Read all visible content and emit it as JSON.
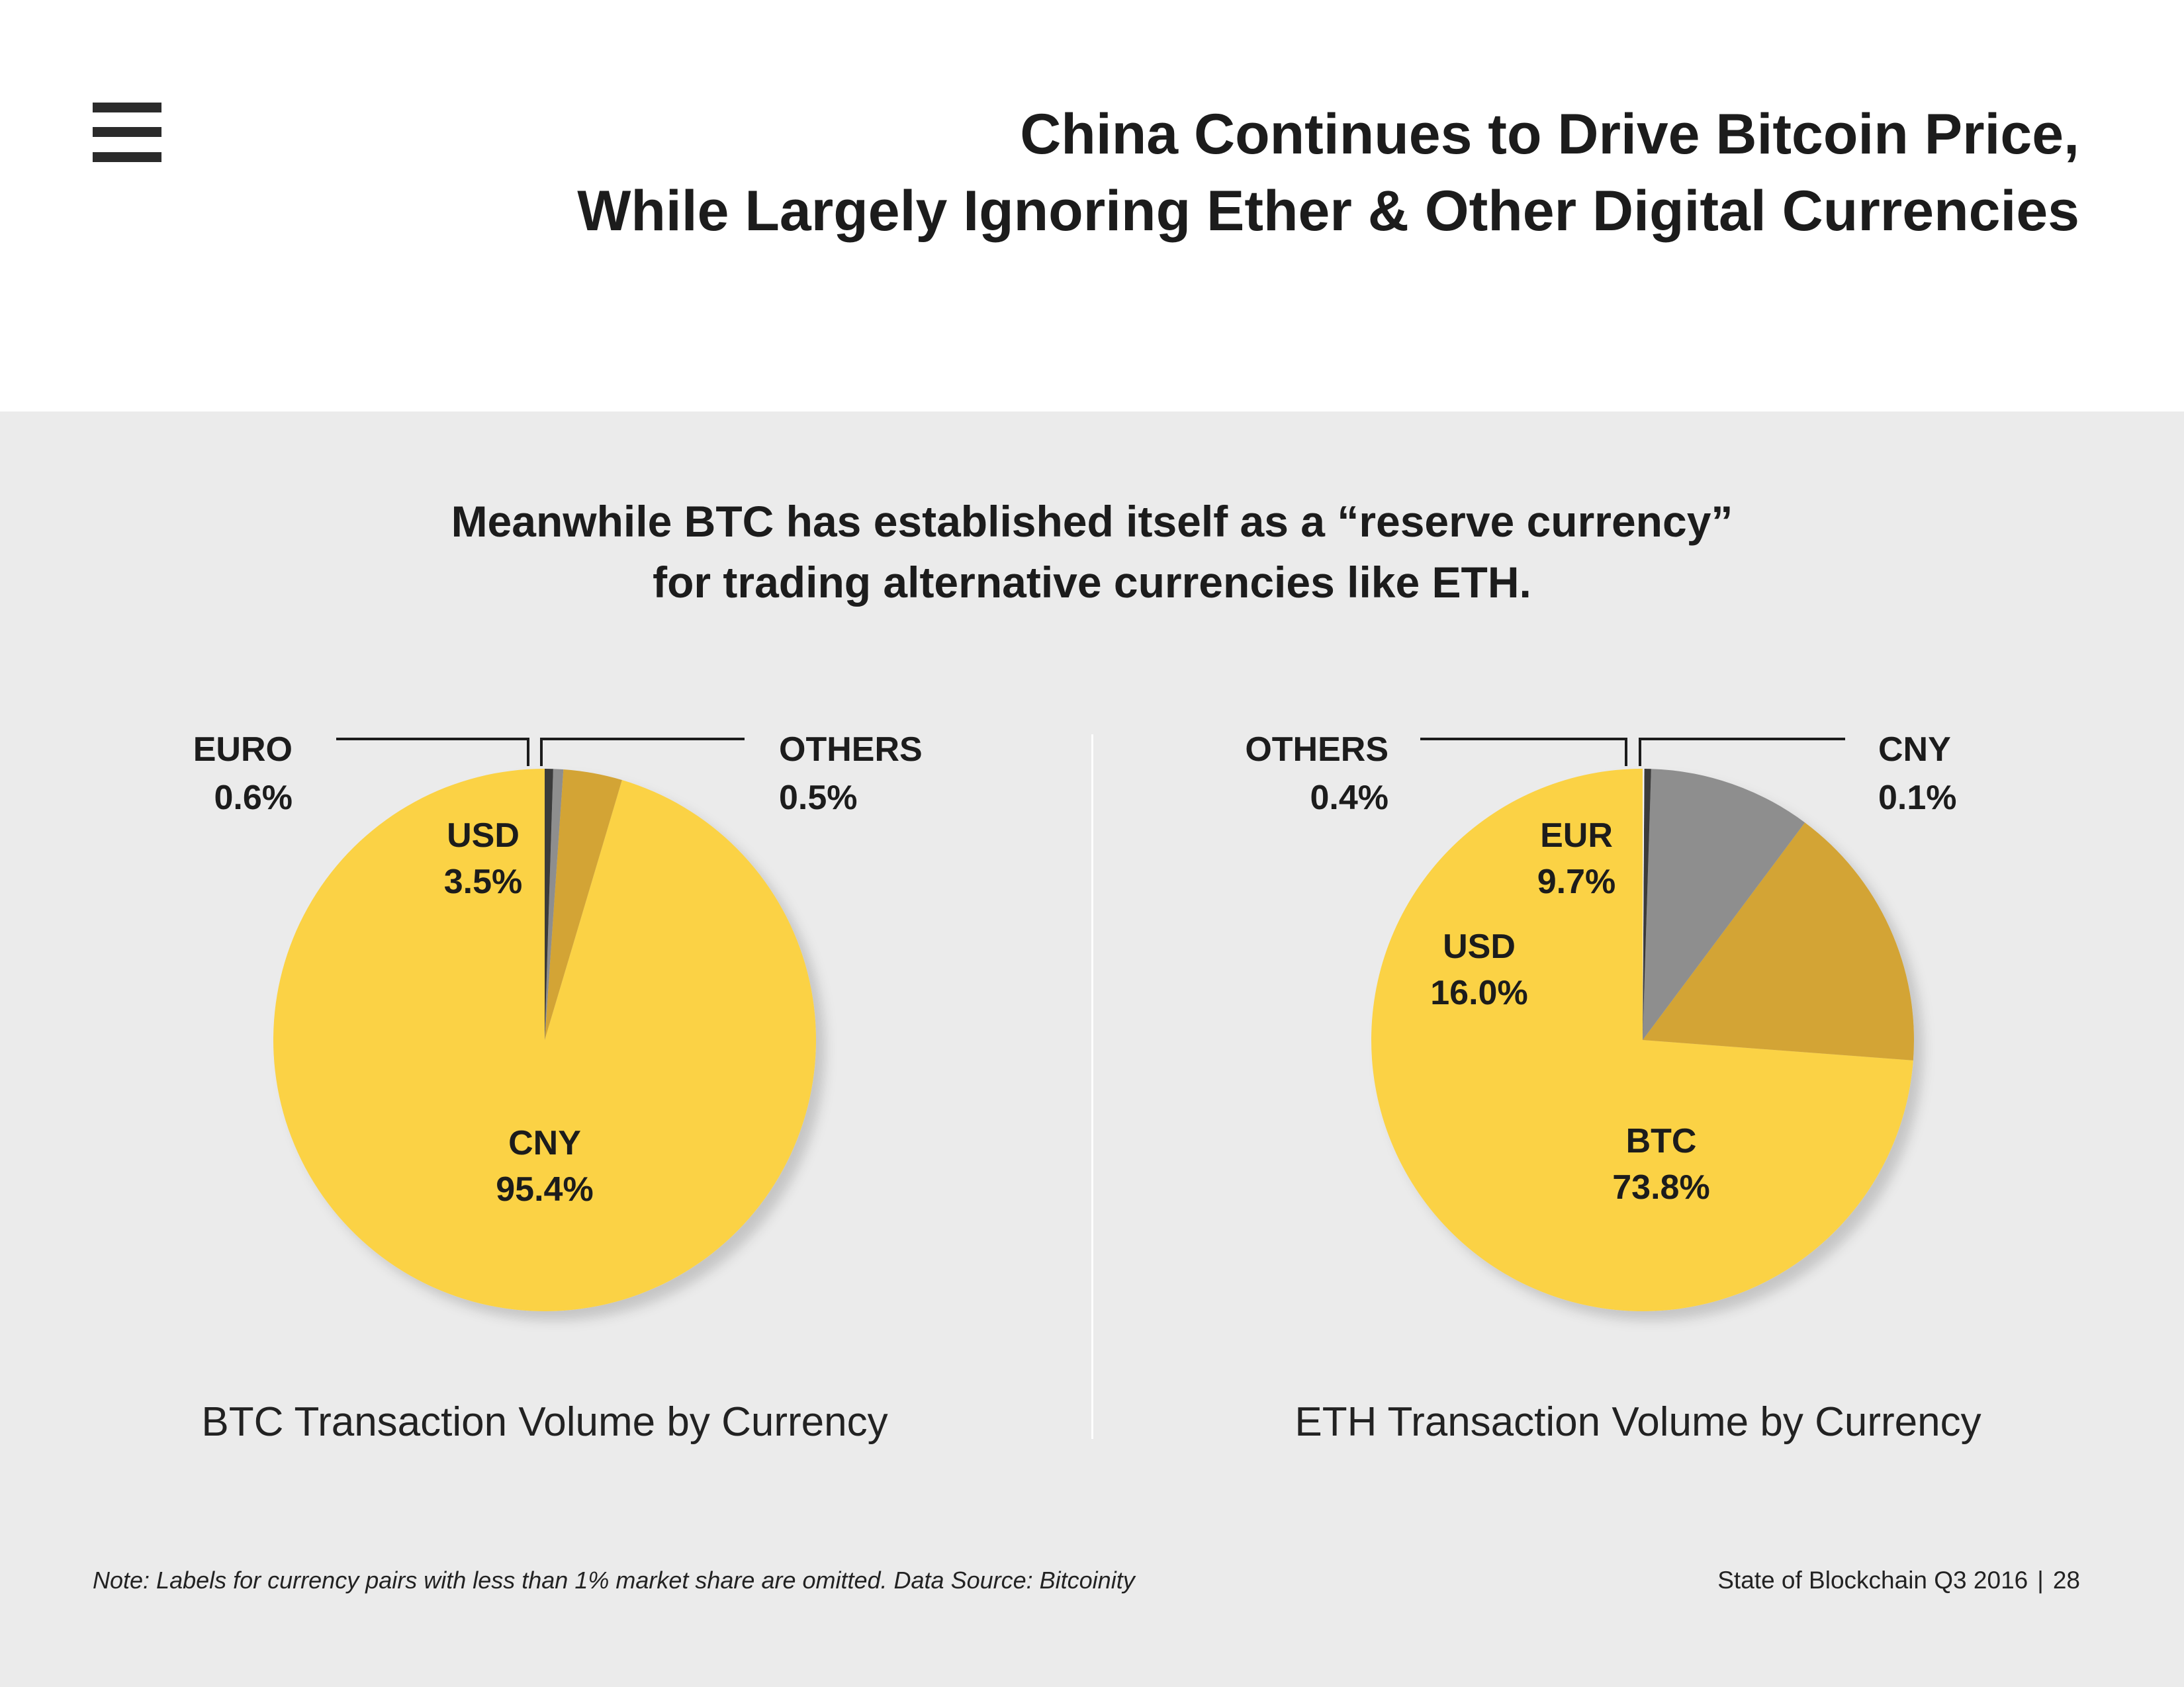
{
  "header": {
    "menu_icon": "hamburger-menu-icon",
    "title_line1": "China Continues to Drive Bitcoin Price,",
    "title_line2": "While Largely Ignoring Ether & Other Digital Currencies"
  },
  "subtitle": {
    "line1": "Meanwhile BTC has established itself as a “reserve currency”",
    "line2": "for trading alternative currencies like ETH."
  },
  "colors": {
    "main": "#fbd244",
    "usd": "#d3a435",
    "grey": "#8e8e8e",
    "dark": "#3a3a3a",
    "panel": "#ebebeb"
  },
  "chart_data": [
    {
      "type": "pie",
      "title": "BTC Transaction Volume by Currency",
      "slices": [
        {
          "name": "CNY",
          "value": 95.4,
          "label": "95.4%",
          "color": "#fbd244"
        },
        {
          "name": "USD",
          "value": 3.5,
          "label": "3.5%",
          "color": "#d3a435"
        },
        {
          "name": "EURO",
          "value": 0.6,
          "label": "0.6%",
          "color": "#8e8e8e"
        },
        {
          "name": "OTHERS",
          "value": 0.5,
          "label": "0.5%",
          "color": "#3a3a3a"
        }
      ]
    },
    {
      "type": "pie",
      "title": "ETH Transaction Volume by Currency",
      "slices": [
        {
          "name": "BTC",
          "value": 73.8,
          "label": "73.8%",
          "color": "#fbd244"
        },
        {
          "name": "USD",
          "value": 16.0,
          "label": "16.0%",
          "color": "#d3a435"
        },
        {
          "name": "EUR",
          "value": 9.7,
          "label": "9.7%",
          "color": "#8e8e8e"
        },
        {
          "name": "OTHERS",
          "value": 0.4,
          "label": "0.4%",
          "color": "#3a3a3a"
        },
        {
          "name": "CNY",
          "value": 0.1,
          "label": "0.1%",
          "color": "#f4f4f4"
        }
      ]
    }
  ],
  "footer": {
    "note": "Note: Labels for currency pairs with less than 1% market share are omitted. Data Source: Bitcoinity",
    "report": "State of Blockchain Q3 2016",
    "separator": "|",
    "page": "28"
  }
}
